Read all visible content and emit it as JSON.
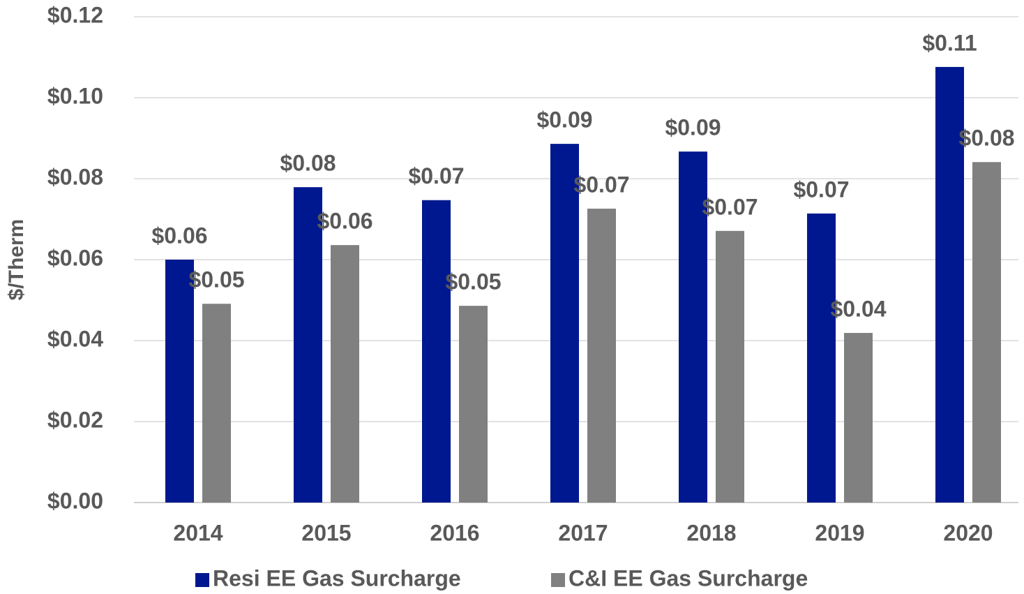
{
  "chart_data": {
    "type": "bar",
    "y_label": "$/Therm",
    "categories": [
      "2014",
      "2015",
      "2016",
      "2017",
      "2018",
      "2019",
      "2020"
    ],
    "series": [
      {
        "name": "Resi EE Gas Surcharge",
        "color": "#00188f",
        "values": [
          0.06,
          0.0779,
          0.0747,
          0.0886,
          0.0867,
          0.0714,
          0.1076
        ],
        "value_labels": [
          "$0.06",
          "$0.08",
          "$0.07",
          "$0.09",
          "$0.09",
          "$0.07",
          "$0.11"
        ]
      },
      {
        "name": "C&I EE Gas Surcharge",
        "color": "#808080",
        "values": [
          0.0491,
          0.0636,
          0.0486,
          0.0726,
          0.0671,
          0.0419,
          0.0841
        ],
        "value_labels": [
          "$0.05",
          "$0.06",
          "$0.05",
          "$0.07",
          "$0.07",
          "$0.04",
          "$0.08"
        ]
      }
    ],
    "ylim": [
      0,
      0.12
    ],
    "yticks": [
      {
        "value": 0,
        "label": "$0.00"
      },
      {
        "value": 0.02,
        "label": "$0.02"
      },
      {
        "value": 0.04,
        "label": "$0.04"
      },
      {
        "value": 0.06,
        "label": "$0.06"
      },
      {
        "value": 0.08,
        "label": "$0.08"
      },
      {
        "value": 0.1,
        "label": "$0.10"
      },
      {
        "value": 0.12,
        "label": "$0.12"
      }
    ],
    "grid": true,
    "legend": "bottom"
  }
}
